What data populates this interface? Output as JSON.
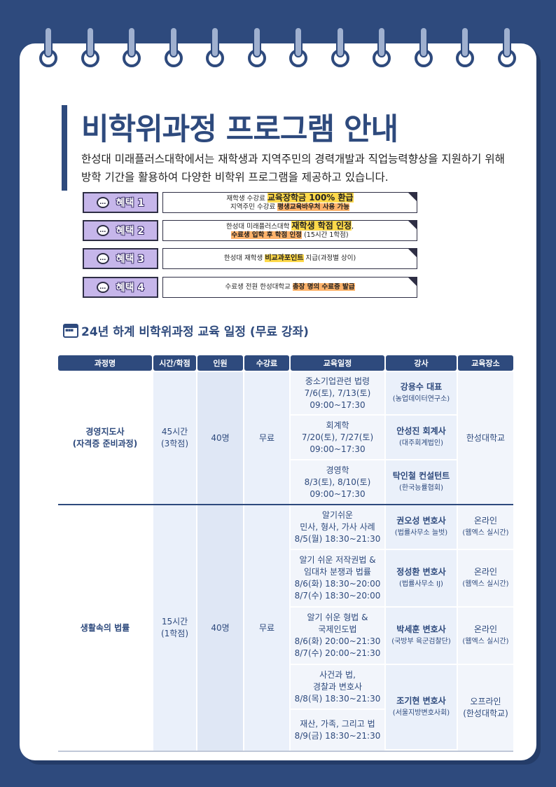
{
  "title": "비학위과정 프로그램 안내",
  "intro": {
    "line1": "한성대 미래플러스대학에서는 재학생과 지역주민의 경력개발과 직업능력향상을 지원하기 위해",
    "line2": "방학 기간을 활용하여 다양한 비학위 프로그램을 제공하고 있습니다."
  },
  "benefits": [
    {
      "label": "혜택 1",
      "l1a": "재학생 수강료 ",
      "l1b": "교육장학금 100% 환급",
      "l2a": "지역주민 수강료 ",
      "l2b": "평생교육바우처 사용 가능"
    },
    {
      "label": "혜택 2",
      "l1a": "한성대 미래플러스대학 ",
      "l1b": "재학생 학점 인정",
      "l1c": ",",
      "l2b": "수료생 입학 후 학점 인정",
      "l2c": " (15시간 1학점)"
    },
    {
      "label": "혜택 3",
      "l1a": "한성대  재학생 ",
      "l1b": "비교과포인트",
      "l1c": " 지급(과정별 상이)"
    },
    {
      "label": "혜택 4",
      "l1a": "수료생 전원 한성대학교 ",
      "l1b": "총장 명의 수료증 발급"
    }
  ],
  "schedule_title": "24년 하계 비학위과정 교육 일정 (무료 강좌)",
  "table": {
    "headers": [
      "과정명",
      "시간/학점",
      "인원",
      "수강료",
      "교육일정",
      "강사",
      "교육장소"
    ],
    "course1": {
      "name": "경영지도사",
      "name_sub": "(자격증 준비과정)",
      "time": "45시간",
      "credit": "(3학점)",
      "people": "40명",
      "fee": "무료",
      "place": "한성대학교",
      "rows": [
        {
          "e1": "중소기업관련 법령",
          "e2": "7/6(토), 7/13(토)",
          "e3": "09:00~17:30",
          "ins": "강용수 대표",
          "ins_sub": "(농업데이터연구소)"
        },
        {
          "e1": "회계학",
          "e2": "7/20(토), 7/27(토)",
          "e3": "09:00~17:30",
          "ins": "안성진 회계사",
          "ins_sub": "(대주회계법인)"
        },
        {
          "e1": "경영학",
          "e2": "8/3(토), 8/10(토)",
          "e3": "09:00~17:30",
          "ins": "탁인철 컨설턴트",
          "ins_sub": "(한국능률협회)"
        }
      ]
    },
    "course2": {
      "name": "생활속의 법률",
      "time": "15시간",
      "credit": "(1학점)",
      "people": "40명",
      "fee": "무료",
      "rows": [
        {
          "e1": "알기쉬운",
          "e2": "민사, 형사, 가사 사례",
          "e3": "8/5(월) 18:30~21:30",
          "ins": "권오성 변호사",
          "ins_sub": "(법률사무소 늘벗)",
          "place": "온라인",
          "place_sub": "(웹엑스 실시간)"
        },
        {
          "e1": "알기 쉬운 저작권법 &",
          "e2": "임대차 분쟁과 법률",
          "e3": "8/6(화) 18:30~20:00",
          "e4": "8/7(수) 18:30~20:00",
          "ins": "정성환 변호사",
          "ins_sub": "(법률사무소 IJ)",
          "place": "온라인",
          "place_sub": "(웹엑스 실시간)"
        },
        {
          "e1": "알기 쉬운 형법 &",
          "e2": "국제인도법",
          "e3": "8/6(화) 20:00~21:30",
          "e4": "8/7(수) 20:00~21:30",
          "ins": "박세훈 변호사",
          "ins_sub": "(국방부 육군검찰단)",
          "place": "온라인",
          "place_sub": "(웹엑스 실시간)"
        },
        {
          "e1": "사건과 법,",
          "e2": "경찰과 변호사",
          "e3": "8/8(목) 18:30~21:30"
        },
        {
          "e1": "재산, 가족, 그리고 법",
          "e2": "8/9(금) 18:30~21:30"
        }
      ],
      "last_ins": "조기현 변호사",
      "last_ins_sub": "(서울지방변호사회)",
      "last_place": "오프라인",
      "last_place_sub": "(한성대학교)"
    }
  }
}
